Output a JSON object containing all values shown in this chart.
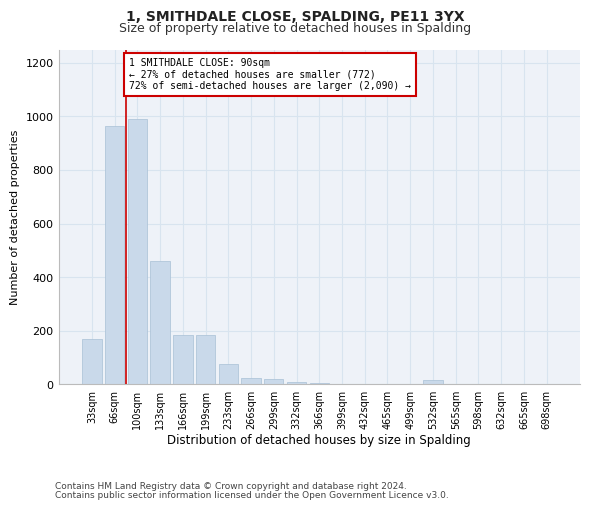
{
  "title": "1, SMITHDALE CLOSE, SPALDING, PE11 3YX",
  "subtitle": "Size of property relative to detached houses in Spalding",
  "xlabel": "Distribution of detached houses by size in Spalding",
  "ylabel": "Number of detached properties",
  "footnote1": "Contains HM Land Registry data © Crown copyright and database right 2024.",
  "footnote2": "Contains public sector information licensed under the Open Government Licence v3.0.",
  "annotation_line1": "1 SMITHDALE CLOSE: 90sqm",
  "annotation_line2": "← 27% of detached houses are smaller (772)",
  "annotation_line3": "72% of semi-detached houses are larger (2,090) →",
  "property_sqm": 90,
  "categories": [
    "33sqm",
    "66sqm",
    "100sqm",
    "133sqm",
    "166sqm",
    "199sqm",
    "233sqm",
    "266sqm",
    "299sqm",
    "332sqm",
    "366sqm",
    "399sqm",
    "432sqm",
    "465sqm",
    "499sqm",
    "532sqm",
    "565sqm",
    "598sqm",
    "632sqm",
    "665sqm",
    "698sqm"
  ],
  "values": [
    170,
    965,
    990,
    460,
    185,
    185,
    75,
    25,
    20,
    10,
    5,
    0,
    0,
    0,
    0,
    15,
    0,
    0,
    0,
    0,
    0
  ],
  "bar_color": "#c9d9ea",
  "bar_edgecolor": "#a8c0d6",
  "marker_color": "#cc0000",
  "ylim": [
    0,
    1250
  ],
  "yticks": [
    0,
    200,
    400,
    600,
    800,
    1000,
    1200
  ],
  "grid_color": "#d8e4ef",
  "bg_color": "#eef2f8",
  "annotation_box_color": "#ffffff",
  "annotation_border_color": "#cc0000",
  "fig_bg_color": "#ffffff",
  "title_fontsize": 10,
  "subtitle_fontsize": 9,
  "ylabel_fontsize": 8,
  "xlabel_fontsize": 8.5,
  "tick_fontsize": 7,
  "footnote_fontsize": 6.5
}
